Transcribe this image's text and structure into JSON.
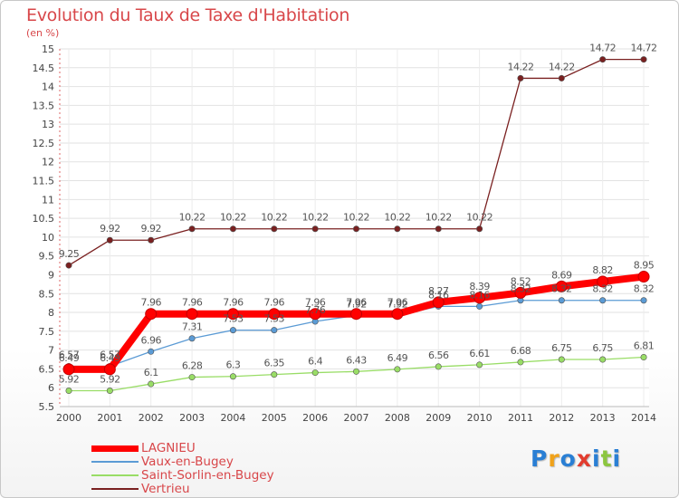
{
  "chart_data": {
    "type": "line",
    "title": "Evolution du Taux de Taxe d'Habitation",
    "unit_label": "(en %)",
    "x": [
      "2000",
      "2001",
      "2002",
      "2003",
      "2004",
      "2005",
      "2006",
      "2007",
      "2008",
      "2009",
      "2010",
      "2011",
      "2012",
      "2013",
      "2014"
    ],
    "ylim": [
      5.5,
      15
    ],
    "yticks": [
      "5.5",
      "6",
      "6.5",
      "7",
      "7.5",
      "8",
      "8.5",
      "9",
      "9.5",
      "10",
      "10.5",
      "11",
      "11.5",
      "12",
      "12.5",
      "13",
      "13.5",
      "14",
      "14.5",
      "15"
    ],
    "grid": true,
    "legend_position": "bottom-left",
    "series": [
      {
        "name": "LAGNIEU",
        "color": "#ff0000",
        "values": [
          6.49,
          6.49,
          7.96,
          7.96,
          7.96,
          7.96,
          7.96,
          7.96,
          7.96,
          8.27,
          8.39,
          8.52,
          8.69,
          8.82,
          8.95
        ],
        "labels": [
          "6.49",
          "6.49",
          "7.96",
          "7.96",
          "7.96",
          "7.96",
          "7.96",
          "7.96",
          "7.96",
          "8.27",
          "8.39",
          "8.52",
          "8.69",
          "8.82",
          "8.95"
        ]
      },
      {
        "name": "Vaux-en-Bugey",
        "color": "#5b9bd5",
        "values": [
          6.57,
          6.57,
          6.96,
          7.31,
          7.53,
          7.53,
          7.76,
          7.92,
          7.92,
          8.16,
          8.16,
          8.32,
          8.32,
          8.32,
          8.32
        ],
        "labels": [
          "6.57",
          "6.57",
          "6.96",
          "7.31",
          "7.53",
          "7.53",
          "7.76",
          "7.92",
          "7.92",
          "8.16",
          "8.16",
          "8.32",
          "8.32",
          "8.32",
          "8.32"
        ]
      },
      {
        "name": "Saint-Sorlin-en-Bugey",
        "color": "#99dd66",
        "values": [
          5.92,
          5.92,
          6.1,
          6.28,
          6.3,
          6.35,
          6.4,
          6.43,
          6.49,
          6.56,
          6.61,
          6.68,
          6.75,
          6.75,
          6.81
        ],
        "labels": [
          "5.92",
          "5.92",
          "6.1",
          "6.28",
          "6.3",
          "6.35",
          "6.4",
          "6.43",
          "6.49",
          "6.56",
          "6.61",
          "6.68",
          "6.75",
          "6.75",
          "6.81"
        ]
      },
      {
        "name": "Vertrieu",
        "color": "#7a2020",
        "values": [
          9.25,
          9.92,
          9.92,
          10.22,
          10.22,
          10.22,
          10.22,
          10.22,
          10.22,
          10.22,
          10.22,
          14.22,
          14.22,
          14.72,
          14.72
        ],
        "labels": [
          "9.25",
          "9.92",
          "9.92",
          "10.22",
          "10.22",
          "10.22",
          "10.22",
          "10.22",
          "10.22",
          "10.22",
          "10.22",
          "14.22",
          "14.22",
          "14.72",
          "14.72"
        ]
      }
    ]
  },
  "legend": {
    "items": [
      "LAGNIEU",
      "Vaux-en-Bugey",
      "Saint-Sorlin-en-Bugey",
      "Vertrieu"
    ]
  },
  "logo": {
    "text": "Proxiti",
    "letters": [
      "P",
      "r",
      "o",
      "x",
      "i",
      "t",
      "i"
    ],
    "colors": [
      "#2a7fd4",
      "#f0a21a",
      "#2a7fd4",
      "#e23c2e",
      "#2a7fd4",
      "#8cc63f",
      "#2a7fd4"
    ]
  }
}
